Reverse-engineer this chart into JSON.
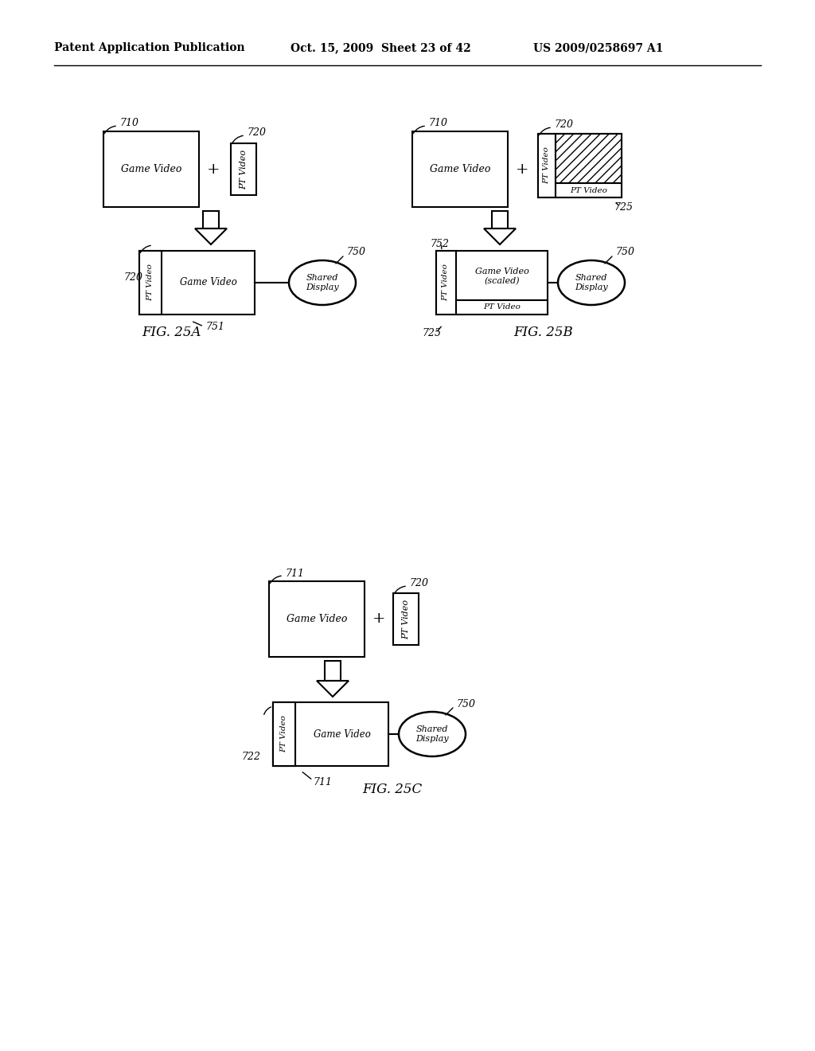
{
  "bg_color": "#ffffff",
  "header_left": "Patent Application Publication",
  "header_center": "Oct. 15, 2009  Sheet 23 of 42",
  "header_right": "US 2009/0258697 A1"
}
